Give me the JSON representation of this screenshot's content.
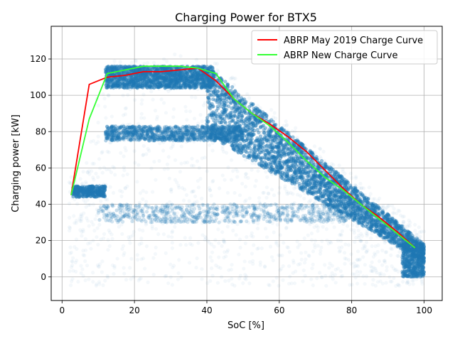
{
  "chart_data": {
    "type": "scatter",
    "title": "Charging Power for BTX5",
    "xlabel": "SoC [%]",
    "ylabel": "Charging power [kW]",
    "xlim": [
      -3,
      105
    ],
    "ylim": [
      -13,
      138
    ],
    "xticks": [
      0,
      20,
      40,
      60,
      80,
      100
    ],
    "yticks": [
      0,
      20,
      40,
      60,
      80,
      100,
      120
    ],
    "grid": true,
    "legend_position": "upper-right",
    "scatter_color": "#1f77b4",
    "scatter_description": "dense cloud of measured charging sessions (point cloud, low alpha)",
    "series": [
      {
        "name": "ABRP May 2019 Charge Curve",
        "color": "#ff0000",
        "x": [
          2.5,
          7.5,
          12.5,
          17.5,
          22.5,
          27.5,
          32.5,
          37.5,
          42.5,
          47.5,
          52.5,
          57.5,
          62.5,
          67.5,
          72.5,
          77.5,
          82.5,
          87.5,
          92.5,
          97.5
        ],
        "y": [
          45,
          106,
          110,
          111,
          113,
          113,
          114,
          115,
          108,
          98,
          90,
          84,
          77,
          69,
          59,
          49,
          40,
          33,
          25,
          16
        ]
      },
      {
        "name": "ABRP New Charge Curve",
        "color": "#33ff33",
        "x": [
          2.5,
          7.5,
          12.5,
          17.5,
          22.5,
          27.5,
          32.5,
          37.5,
          42.5,
          47.5,
          52.5,
          57.5,
          62.5,
          67.5,
          72.5,
          77.5,
          82.5,
          87.5,
          92.5,
          97.5
        ],
        "y": [
          45,
          87,
          112,
          114,
          116,
          116,
          116,
          115,
          112,
          98,
          90,
          83,
          74,
          64,
          55,
          48,
          40,
          32,
          24,
          16
        ]
      }
    ]
  }
}
